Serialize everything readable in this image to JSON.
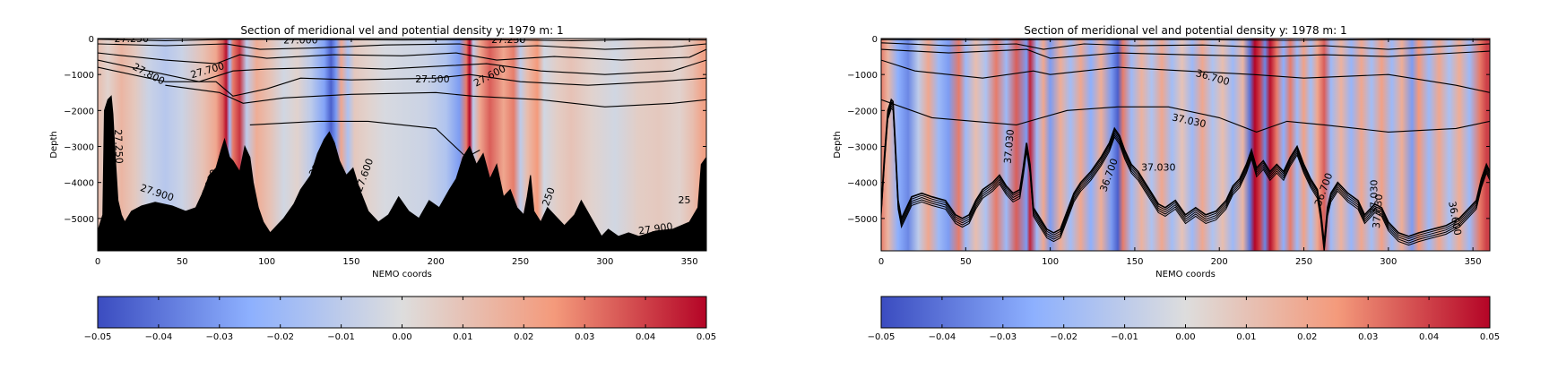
{
  "chart_data": [
    {
      "type": "heatmap",
      "title": "Section of meridional vel and potential density y: 1979 m: 1",
      "xlabel": "NEMO coords",
      "ylabel": "Depth",
      "xlim": [
        0,
        360
      ],
      "ylim": [
        -5900,
        0
      ],
      "xticks": [
        0,
        50,
        100,
        150,
        200,
        250,
        300,
        350
      ],
      "yticks": [
        0,
        -1000,
        -2000,
        -3000,
        -4000,
        -5000
      ],
      "contour_labels": [
        "27.250",
        "27.000",
        "27.250",
        "27.800",
        "27.700",
        "27.500",
        "27.600",
        "27.250",
        "27.900",
        "27.900",
        "27.700",
        "27.600",
        "27.250",
        "27.900",
        "250",
        "25"
      ],
      "colorbar": {
        "min": -0.05,
        "max": 0.05,
        "cmap": "coolwarm",
        "ticks": [
          "−0.05",
          "−0.04",
          "−0.03",
          "−0.02",
          "−0.01",
          "0.00",
          "0.01",
          "0.02",
          "0.03",
          "0.04",
          "0.05"
        ]
      }
    },
    {
      "type": "heatmap",
      "title": "Section of meridional vel and potential density y: 1978 m: 1",
      "xlabel": "NEMO coords",
      "ylabel": "Depth",
      "xlim": [
        0,
        360
      ],
      "ylim": [
        -5900,
        0
      ],
      "xticks": [
        0,
        50,
        100,
        150,
        200,
        250,
        300,
        350
      ],
      "yticks": [
        0,
        -1000,
        -2000,
        -3000,
        -4000,
        -5000
      ],
      "contour_labels": [
        "36.700",
        "37.030",
        "37.030",
        "36.700",
        "37.030",
        "36.700",
        "37.030",
        "37.030",
        "36.600"
      ],
      "colorbar": {
        "min": -0.05,
        "max": 0.05,
        "cmap": "coolwarm",
        "ticks": [
          "−0.05",
          "−0.04",
          "−0.03",
          "−0.02",
          "−0.01",
          "0.00",
          "0.01",
          "0.02",
          "0.03",
          "0.04",
          "0.05"
        ]
      }
    }
  ]
}
